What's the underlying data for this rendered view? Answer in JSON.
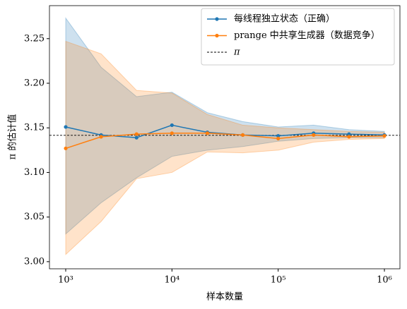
{
  "chart_data": {
    "type": "line",
    "xlabel": "样本数量",
    "ylabel": "π 的估计值",
    "x": [
      1000,
      2154,
      4642,
      10000,
      21544,
      46416,
      100000,
      215443,
      464159,
      1000000
    ],
    "log_x": true,
    "xlim": [
      703,
      1400000
    ],
    "xticks": [
      {
        "value": 1000,
        "label": "10³"
      },
      {
        "value": 10000,
        "label": "10⁴"
      },
      {
        "value": 100000,
        "label": "10⁵"
      },
      {
        "value": 1000000,
        "label": "10⁶"
      }
    ],
    "ylim": [
      2.992,
      3.287
    ],
    "yticks": [
      {
        "value": 3,
        "label": "3.00"
      },
      3.05,
      {
        "value": 3.1,
        "label": "3.10"
      },
      3.15,
      {
        "value": 3.2,
        "label": "3.20"
      },
      3.25
    ],
    "series": [
      {
        "name": "每线程独立状态（正确）",
        "color": "#1f77b4",
        "values": [
          3.151,
          3.142,
          3.139,
          3.153,
          3.145,
          3.142,
          3.141,
          3.144,
          3.143,
          3.142
        ],
        "lower": [
          3.031,
          3.066,
          3.094,
          3.118,
          3.125,
          3.129,
          3.135,
          3.138,
          3.139,
          3.139
        ],
        "upper": [
          3.273,
          3.218,
          3.185,
          3.19,
          3.167,
          3.157,
          3.151,
          3.153,
          3.148,
          3.146
        ]
      },
      {
        "name": "prange 中共享生成器（数据竞争）",
        "color": "#ff7f0e",
        "values": [
          3.127,
          3.14,
          3.143,
          3.144,
          3.144,
          3.142,
          3.138,
          3.142,
          3.14,
          3.141
        ],
        "lower": [
          3.008,
          3.045,
          3.093,
          3.1,
          3.123,
          3.122,
          3.125,
          3.134,
          3.137,
          3.138
        ],
        "upper": [
          3.247,
          3.233,
          3.192,
          3.189,
          3.165,
          3.153,
          3.15,
          3.148,
          3.146,
          3.145
        ]
      }
    ],
    "hline": {
      "value": 3.14159,
      "label": "π",
      "color": "#000000"
    },
    "legend": "upper right"
  }
}
